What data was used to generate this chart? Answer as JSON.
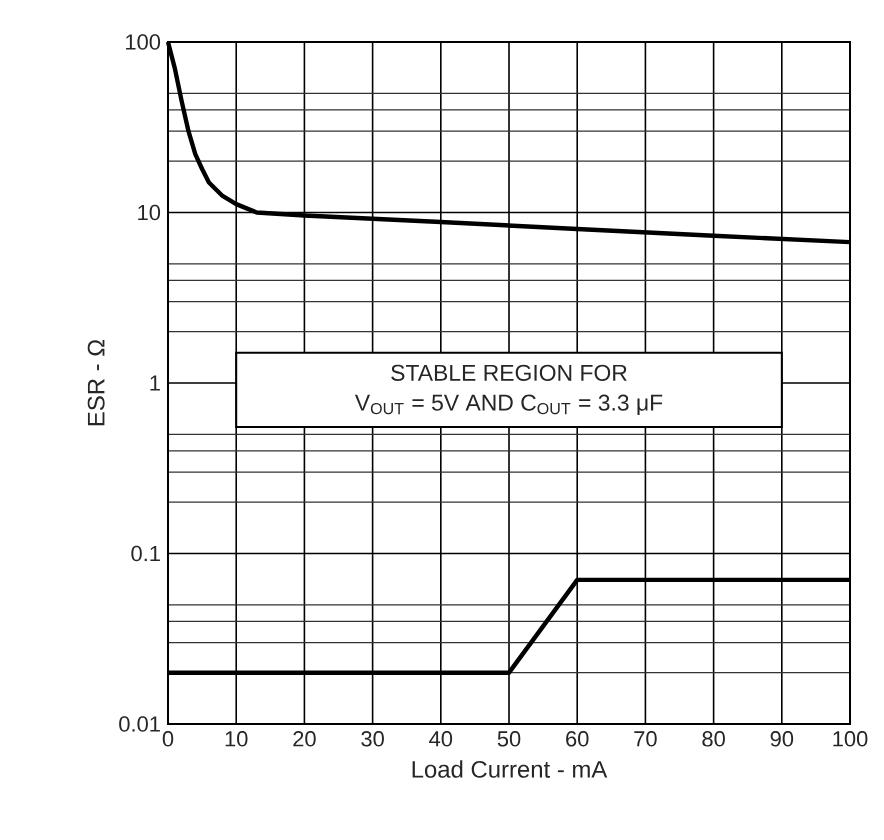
{
  "chart_data": {
    "type": "line",
    "xlabel": "Load Current - mA",
    "ylabel": "ESR - Ω",
    "log": "y",
    "grid": true,
    "marker": "none",
    "line_style": "solid",
    "xlim": [
      0,
      100
    ],
    "xticks": [
      0,
      10,
      20,
      30,
      40,
      50,
      60,
      70,
      80,
      90,
      100
    ],
    "ylim": [
      0.01,
      100
    ],
    "yticks": [
      0.01,
      0.1,
      1,
      10,
      100
    ],
    "annotations": [
      "STABLE REGION FOR",
      "V$_{OUT}$ = 5V AND C$_{OUT}$ = 3.3 μF"
    ],
    "series": [
      {
        "color": "#000000",
        "x": [
          0,
          1,
          2,
          3,
          4,
          5,
          6,
          8,
          10,
          13,
          20,
          40,
          60,
          80,
          100
        ],
        "values": [
          100,
          70,
          45,
          30,
          22,
          18,
          15,
          12.5,
          11.2,
          10,
          9.6,
          8.8,
          8,
          7.3,
          6.7
        ]
      },
      {
        "color": "#000000",
        "x": [
          0,
          50,
          60,
          100
        ],
        "values": [
          0.02,
          0.02,
          0.07,
          0.07
        ]
      }
    ]
  }
}
